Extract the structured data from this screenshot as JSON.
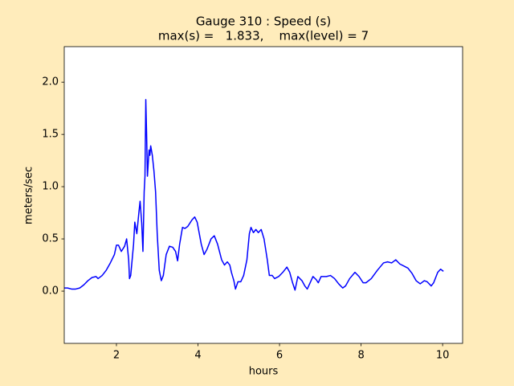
{
  "chart_data": {
    "type": "line",
    "title": [
      "Gauge 310 : Speed (s)",
      "max(s) =   1.833,    max(level) = 7"
    ],
    "xlabel": "hours",
    "ylabel": "meters/sec",
    "color": "#0000ff",
    "xlim": [
      0.72,
      10.49
    ],
    "ylim": [
      -0.5,
      2.34
    ],
    "xticks": [
      2,
      4,
      6,
      8,
      10
    ],
    "yticks": [
      {
        "value": 0,
        "label": "0.0"
      },
      0.5,
      {
        "value": 1,
        "label": "1.0"
      },
      1.5,
      {
        "value": 2,
        "label": "2.0"
      }
    ],
    "x": [
      0.72,
      0.8,
      0.9,
      1.0,
      1.1,
      1.2,
      1.3,
      1.4,
      1.5,
      1.55,
      1.65,
      1.75,
      1.85,
      1.95,
      2.0,
      2.05,
      2.12,
      2.2,
      2.25,
      2.3,
      2.32,
      2.35,
      2.42,
      2.45,
      2.5,
      2.55,
      2.58,
      2.62,
      2.65,
      2.68,
      2.7,
      2.72,
      2.74,
      2.76,
      2.8,
      2.82,
      2.84,
      2.88,
      2.92,
      2.96,
      3.0,
      3.05,
      3.1,
      3.15,
      3.22,
      3.3,
      3.38,
      3.45,
      3.5,
      3.55,
      3.62,
      3.68,
      3.75,
      3.85,
      3.92,
      3.98,
      4.08,
      4.15,
      4.22,
      4.32,
      4.4,
      4.48,
      4.58,
      4.65,
      4.72,
      4.78,
      4.82,
      4.88,
      4.92,
      4.98,
      5.05,
      5.12,
      5.2,
      5.26,
      5.3,
      5.36,
      5.42,
      5.48,
      5.55,
      5.62,
      5.7,
      5.75,
      5.82,
      5.88,
      5.98,
      6.08,
      6.18,
      6.25,
      6.32,
      6.38,
      6.45,
      6.55,
      6.62,
      6.68,
      6.75,
      6.82,
      6.9,
      6.95,
      7.02,
      7.15,
      7.25,
      7.35,
      7.45,
      7.55,
      7.62,
      7.72,
      7.85,
      7.95,
      8.05,
      8.12,
      8.25,
      8.4,
      8.55,
      8.65,
      8.75,
      8.85,
      8.95,
      9.05,
      9.15,
      9.25,
      9.35,
      9.45,
      9.55,
      9.62,
      9.72,
      9.78,
      9.88,
      9.95,
      10.02
    ],
    "values": [
      0.03,
      0.03,
      0.02,
      0.02,
      0.03,
      0.06,
      0.1,
      0.13,
      0.14,
      0.12,
      0.15,
      0.2,
      0.27,
      0.35,
      0.44,
      0.44,
      0.38,
      0.43,
      0.5,
      0.3,
      0.12,
      0.15,
      0.45,
      0.66,
      0.55,
      0.75,
      0.86,
      0.65,
      0.38,
      0.95,
      1.1,
      1.833,
      1.5,
      1.1,
      1.35,
      1.3,
      1.39,
      1.3,
      1.15,
      0.95,
      0.55,
      0.2,
      0.1,
      0.15,
      0.35,
      0.43,
      0.42,
      0.38,
      0.29,
      0.45,
      0.61,
      0.6,
      0.62,
      0.68,
      0.71,
      0.66,
      0.45,
      0.35,
      0.4,
      0.5,
      0.53,
      0.45,
      0.3,
      0.25,
      0.28,
      0.25,
      0.18,
      0.1,
      0.02,
      0.09,
      0.09,
      0.15,
      0.3,
      0.55,
      0.61,
      0.56,
      0.59,
      0.56,
      0.59,
      0.5,
      0.3,
      0.15,
      0.15,
      0.12,
      0.14,
      0.18,
      0.23,
      0.18,
      0.08,
      0.01,
      0.14,
      0.1,
      0.05,
      0.02,
      0.08,
      0.14,
      0.11,
      0.08,
      0.14,
      0.14,
      0.15,
      0.12,
      0.07,
      0.03,
      0.05,
      0.12,
      0.18,
      0.14,
      0.08,
      0.08,
      0.12,
      0.2,
      0.27,
      0.28,
      0.27,
      0.3,
      0.26,
      0.24,
      0.22,
      0.17,
      0.1,
      0.07,
      0.1,
      0.09,
      0.05,
      0.08,
      0.18,
      0.21,
      0.19
    ]
  }
}
